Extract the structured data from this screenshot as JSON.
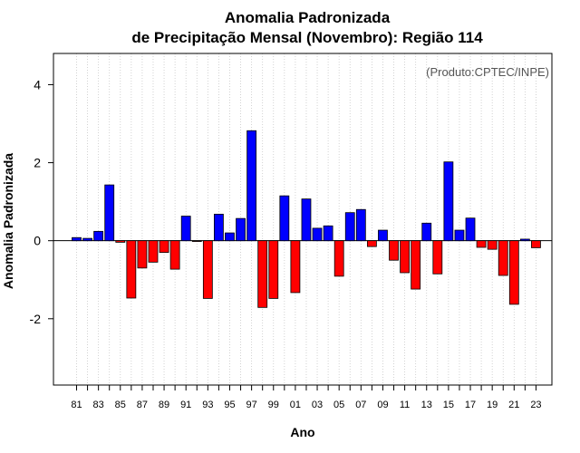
{
  "chart_data": {
    "type": "bar",
    "title_line1": "Anomalia Padronizada",
    "title_line2": "de Precipitação Mensal (Novembro): Região 114",
    "xlabel": "Ano",
    "ylabel": "Anomalia Padronizada",
    "credit": "(Produto:CPTEC/INPE)",
    "ylim": [
      -3.7,
      4.8
    ],
    "yticks": [
      4,
      2,
      0,
      -2
    ],
    "ytick_labels": [
      "4",
      "2",
      "0",
      "-2"
    ],
    "grid": true,
    "positive_color": "#0000ff",
    "negative_color": "#ff0000",
    "categories": [
      "81",
      "82",
      "83",
      "84",
      "85",
      "86",
      "87",
      "88",
      "89",
      "90",
      "91",
      "92",
      "93",
      "94",
      "95",
      "96",
      "97",
      "98",
      "99",
      "00",
      "01",
      "02",
      "03",
      "04",
      "05",
      "06",
      "07",
      "08",
      "09",
      "10",
      "11",
      "12",
      "13",
      "14",
      "15",
      "16",
      "17",
      "18",
      "19",
      "20",
      "21",
      "22",
      "23"
    ],
    "xtick_labels": [
      "81",
      "83",
      "85",
      "87",
      "89",
      "91",
      "93",
      "95",
      "97",
      "99",
      "01",
      "03",
      "05",
      "07",
      "09",
      "11",
      "13",
      "15",
      "17",
      "19",
      "21",
      "23"
    ],
    "values": [
      0.08,
      0.06,
      0.24,
      1.43,
      -0.04,
      -1.47,
      -0.7,
      -0.55,
      -0.3,
      -0.73,
      0.63,
      -0.02,
      -1.48,
      0.68,
      0.2,
      0.57,
      2.82,
      -1.71,
      -1.48,
      1.15,
      -1.33,
      1.07,
      0.32,
      0.38,
      -0.91,
      0.72,
      0.8,
      -0.15,
      0.27,
      -0.5,
      -0.82,
      -1.24,
      0.45,
      -0.85,
      2.02,
      0.27,
      0.58,
      -0.17,
      -0.22,
      -0.89,
      -1.63,
      0.04,
      -0.18
    ]
  }
}
